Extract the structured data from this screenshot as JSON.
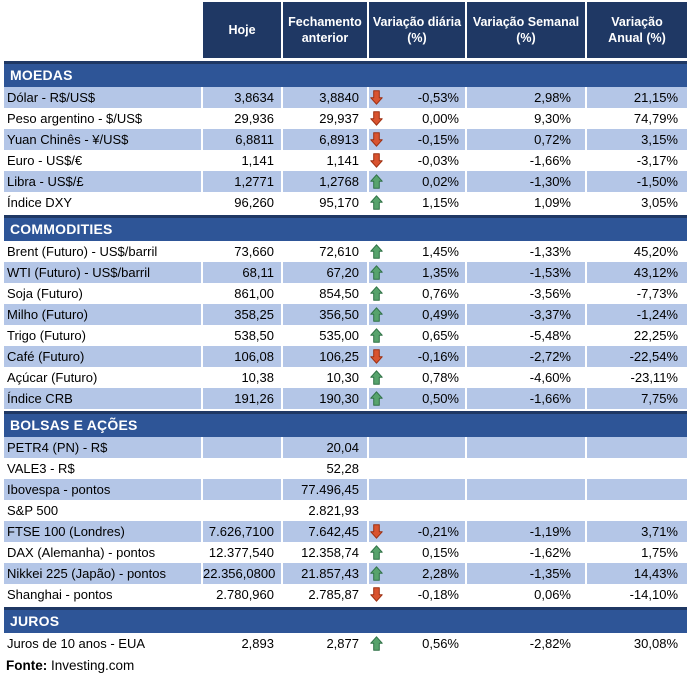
{
  "chart_data": {
    "type": "table",
    "columns": [
      {
        "label": "Hoje",
        "lines": [
          "Hoje"
        ]
      },
      {
        "label": "Fechamento anterior",
        "lines": [
          "Fechamento",
          "anterior"
        ]
      },
      {
        "label": "Variação diária (%)",
        "lines": [
          "Variação diária",
          "(%)"
        ]
      },
      {
        "label": "Variação Semanal (%)",
        "lines": [
          "Variação Semanal",
          "(%)"
        ]
      },
      {
        "label": "Variação Anual (%)",
        "lines": [
          "Variação",
          "Anual (%)"
        ]
      }
    ],
    "sections": [
      {
        "title": "MOEDAS",
        "rows": [
          {
            "label": "Dólar - R$/US$",
            "hoje": "3,8634",
            "fechamento": "3,8840",
            "arrow": "down",
            "diaria": "-0,53%",
            "semanal": "2,98%",
            "anual": "21,15%"
          },
          {
            "label": "Peso argentino - $/US$",
            "hoje": "29,936",
            "fechamento": "29,937",
            "arrow": "down",
            "diaria": "0,00%",
            "semanal": "9,30%",
            "anual": "74,79%"
          },
          {
            "label": "Yuan Chinês - ¥/US$",
            "hoje": "6,8811",
            "fechamento": "6,8913",
            "arrow": "down",
            "diaria": "-0,15%",
            "semanal": "0,72%",
            "anual": "3,15%"
          },
          {
            "label": "Euro - US$/€",
            "hoje": "1,141",
            "fechamento": "1,141",
            "arrow": "down",
            "diaria": "-0,03%",
            "semanal": "-1,66%",
            "anual": "-3,17%"
          },
          {
            "label": "Libra - US$/£",
            "hoje": "1,2771",
            "fechamento": "1,2768",
            "arrow": "up",
            "diaria": "0,02%",
            "semanal": "-1,30%",
            "anual": "-1,50%"
          },
          {
            "label": "Índice DXY",
            "hoje": "96,260",
            "fechamento": "95,170",
            "arrow": "up",
            "diaria": "1,15%",
            "semanal": "1,09%",
            "anual": "3,05%"
          }
        ]
      },
      {
        "title": "COMMODITIES",
        "rows": [
          {
            "label": "Brent (Futuro) - US$/barril",
            "hoje": "73,660",
            "fechamento": "72,610",
            "arrow": "up",
            "diaria": "1,45%",
            "semanal": "-1,33%",
            "anual": "45,20%"
          },
          {
            "label": "WTI (Futuro) - US$/barril",
            "hoje": "68,11",
            "fechamento": "67,20",
            "arrow": "up",
            "diaria": "1,35%",
            "semanal": "-1,53%",
            "anual": "43,12%"
          },
          {
            "label": "Soja (Futuro)",
            "hoje": "861,00",
            "fechamento": "854,50",
            "arrow": "up",
            "diaria": "0,76%",
            "semanal": "-3,56%",
            "anual": "-7,73%"
          },
          {
            "label": "Milho (Futuro)",
            "hoje": "358,25",
            "fechamento": "356,50",
            "arrow": "up",
            "diaria": "0,49%",
            "semanal": "-3,37%",
            "anual": "-1,24%"
          },
          {
            "label": "Trigo (Futuro)",
            "hoje": "538,50",
            "fechamento": "535,00",
            "arrow": "up",
            "diaria": "0,65%",
            "semanal": "-5,48%",
            "anual": "22,25%"
          },
          {
            "label": "Café (Futuro)",
            "hoje": "106,08",
            "fechamento": "106,25",
            "arrow": "down",
            "diaria": "-0,16%",
            "semanal": "-2,72%",
            "anual": "-22,54%"
          },
          {
            "label": "Açúcar (Futuro)",
            "hoje": "10,38",
            "fechamento": "10,30",
            "arrow": "up",
            "diaria": "0,78%",
            "semanal": "-4,60%",
            "anual": "-23,11%"
          },
          {
            "label": "Índice CRB",
            "hoje": "191,26",
            "fechamento": "190,30",
            "arrow": "up",
            "diaria": "0,50%",
            "semanal": "-1,66%",
            "anual": "7,75%"
          }
        ]
      },
      {
        "title": "BOLSAS E AÇÕES",
        "rows": [
          {
            "label": "PETR4 (PN) - R$",
            "hoje": "",
            "fechamento": "20,04",
            "arrow": "",
            "diaria": "",
            "semanal": "",
            "anual": ""
          },
          {
            "label": "VALE3 - R$",
            "hoje": "",
            "fechamento": "52,28",
            "arrow": "",
            "diaria": "",
            "semanal": "",
            "anual": ""
          },
          {
            "label": "Ibovespa - pontos",
            "hoje": "",
            "fechamento": "77.496,45",
            "arrow": "",
            "diaria": "",
            "semanal": "",
            "anual": ""
          },
          {
            "label": "S&P 500",
            "hoje": "",
            "fechamento": "2.821,93",
            "arrow": "",
            "diaria": "",
            "semanal": "",
            "anual": ""
          },
          {
            "label": "FTSE 100 (Londres)",
            "hoje": "7.626,7100",
            "fechamento": "7.642,45",
            "arrow": "down",
            "diaria": "-0,21%",
            "semanal": "-1,19%",
            "anual": "3,71%"
          },
          {
            "label": "DAX (Alemanha) - pontos",
            "hoje": "12.377,540",
            "fechamento": "12.358,74",
            "arrow": "up",
            "diaria": "0,15%",
            "semanal": "-1,62%",
            "anual": "1,75%"
          },
          {
            "label": "Nikkei 225 (Japão) - pontos",
            "hoje": "22.356,0800",
            "fechamento": "21.857,43",
            "arrow": "up",
            "diaria": "2,28%",
            "semanal": "-1,35%",
            "anual": "14,43%"
          },
          {
            "label": "Shanghai - pontos",
            "hoje": "2.780,960",
            "fechamento": "2.785,87",
            "arrow": "down",
            "diaria": "-0,18%",
            "semanal": "0,06%",
            "anual": "-14,10%"
          }
        ]
      },
      {
        "title": "JUROS",
        "rows": [
          {
            "label": "Juros de 10 anos - EUA",
            "hoje": "2,893",
            "fechamento": "2,877",
            "arrow": "up",
            "diaria": "0,56%",
            "semanal": "-2,82%",
            "anual": "30,08%"
          }
        ]
      }
    ]
  },
  "footer": {
    "fonte_label": "Fonte:",
    "fonte_value": "Investing.com"
  },
  "icons": {
    "up": "up-arrow-icon",
    "down": "down-arrow-icon"
  },
  "colors": {
    "header_bg": "#1F3864",
    "header_text": "#FFFFFF",
    "section_bg": "#2E5597",
    "section_border": "#1F3864",
    "row_shaded_bg": "#B4C6E7",
    "row_plain_bg": "#FFFFFF",
    "text": "#000000",
    "arrow_up_fill": "#57A36C",
    "arrow_up_stroke": "#2F7146",
    "arrow_down_fill": "#D9532F",
    "arrow_down_stroke": "#9C2E10"
  }
}
